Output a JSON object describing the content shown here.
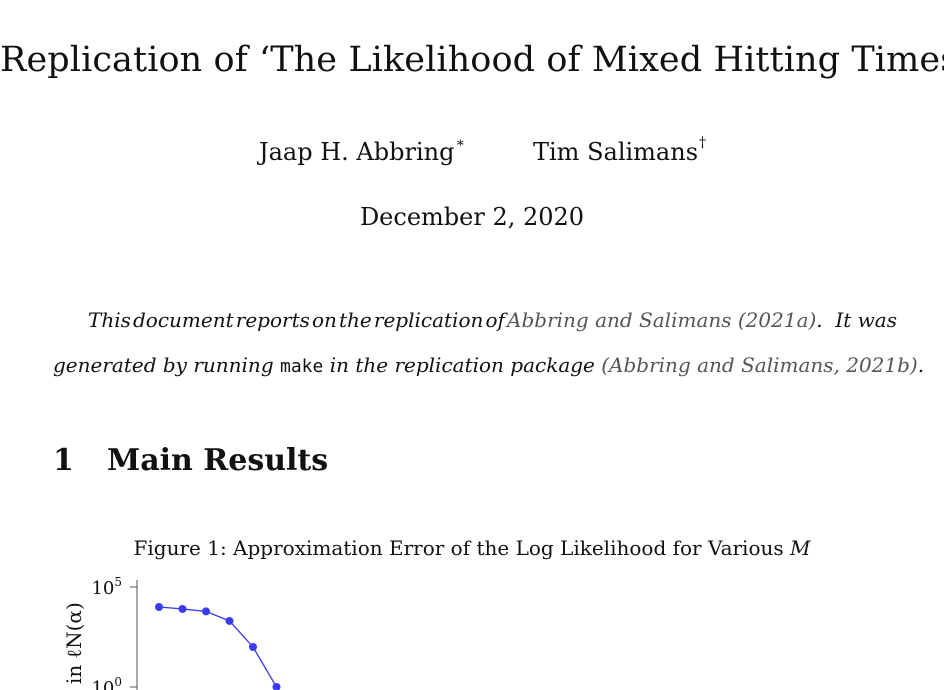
{
  "title": "Replication of ‘The Likelihood of Mixed Hitting Times’",
  "authors": [
    {
      "name": "Jaap H. Abbring",
      "mark": "∗"
    },
    {
      "name": "Tim Salimans",
      "mark": "†"
    }
  ],
  "date": "December 2, 2020",
  "abstract": {
    "line1_words": [
      "This",
      "document",
      "reports",
      "on",
      "the",
      "replication",
      "of"
    ],
    "cite1": "Abbring and Salimans (2021a)",
    "line1_tail": ".  It was",
    "line2_pre": "generated by running",
    "code": "make",
    "line2_mid": "in the replication package",
    "cite2": "(Abbring and Salimans, 2021b)",
    "line2_end": "."
  },
  "section": {
    "number": "1",
    "title": "Main Results"
  },
  "figure": {
    "caption_prefix": "Figure 1: Approximation Error of the Log Likelihood for Various",
    "caption_var": "M"
  },
  "chart_data": {
    "type": "line",
    "ylabel": "r in ℓN(α)",
    "y_scale": "log",
    "y_ticks": [
      {
        "base": "10",
        "exp": "5"
      },
      {
        "base": "10",
        "exp": "0"
      }
    ],
    "series": [
      {
        "color": "#3b3bef",
        "points": [
          {
            "index": 1,
            "y": 10000
          },
          {
            "index": 2,
            "y": 8000
          },
          {
            "index": 3,
            "y": 6000
          },
          {
            "index": 4,
            "y": 2000
          },
          {
            "index": 5,
            "y": 100
          },
          {
            "index": 6,
            "y": 1
          }
        ]
      }
    ]
  }
}
